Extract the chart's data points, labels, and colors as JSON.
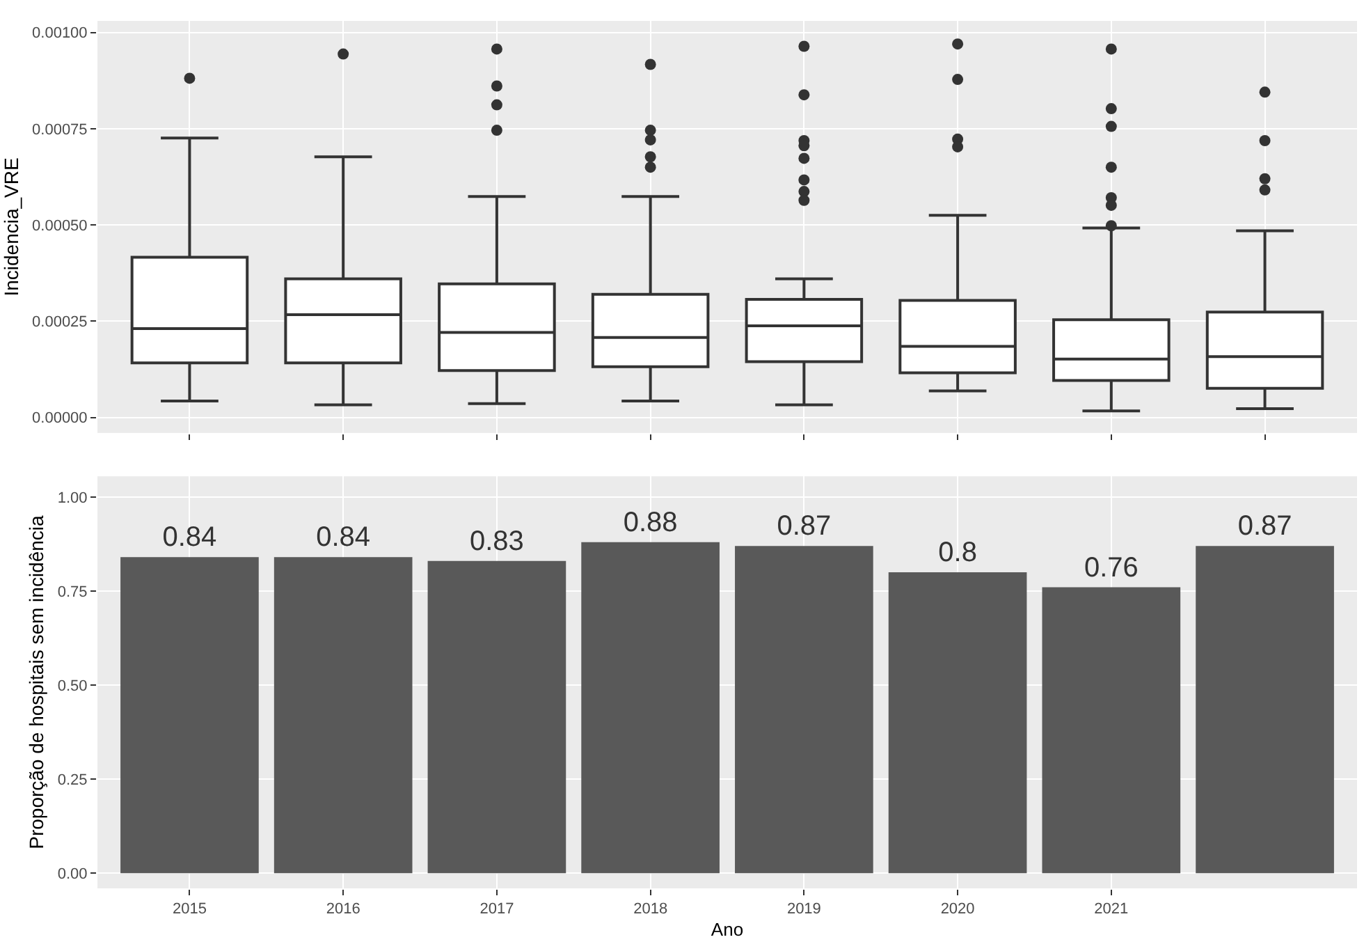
{
  "chart_data": [
    {
      "type": "box",
      "ylabel": "Incidencia_VRE",
      "categories": [
        null,
        null,
        null,
        null,
        null,
        null,
        null,
        null
      ],
      "tick_labels": "y",
      "grid": true,
      "ylim": [
        -4e-05,
        0.00103
      ],
      "yticks": [
        {
          "value": 0,
          "label": "0.00000"
        },
        {
          "value": 0.00025,
          "label": "0.00025"
        },
        {
          "value": 0.0005,
          "label": "0.00050"
        },
        {
          "value": 0.00075,
          "label": "0.00075"
        },
        {
          "value": 0.001,
          "label": "0.00100"
        }
      ],
      "series": [
        {
          "color": "#333333",
          "boxes": [
            {
              "low": 4.3e-05,
              "q1": 0.000142,
              "median": 0.000231,
              "q3": 0.000416,
              "high": 0.000726,
              "outliers": [
                0.000881
              ]
            },
            {
              "low": 3.3e-05,
              "q1": 0.000142,
              "median": 0.000267,
              "q3": 0.00036,
              "high": 0.000677,
              "outliers": [
                0.000944
              ]
            },
            {
              "low": 3.6e-05,
              "q1": 0.000122,
              "median": 0.000221,
              "q3": 0.000347,
              "high": 0.000574,
              "outliers": [
                0.000957,
                0.000861,
                0.000812,
                0.000746
              ]
            },
            {
              "low": 4.3e-05,
              "q1": 0.000132,
              "median": 0.000208,
              "q3": 0.00032,
              "high": 0.000574,
              "outliers": [
                0.000917,
                0.000746,
                0.000721,
                0.000677,
                0.00065
              ]
            },
            {
              "low": 3.3e-05,
              "q1": 0.000145,
              "median": 0.000238,
              "q3": 0.000307,
              "high": 0.00036,
              "outliers": [
                0.000964,
                0.000838,
                0.000719,
                0.000706,
                0.000673,
                0.000617,
                0.000587,
                0.000564
              ]
            },
            {
              "low": 6.9e-05,
              "q1": 0.000116,
              "median": 0.000185,
              "q3": 0.000304,
              "high": 0.000525,
              "outliers": [
                0.00097,
                0.000878,
                0.000723,
                0.000703
              ]
            },
            {
              "low": 1.7e-05,
              "q1": 9.6e-05,
              "median": 0.000152,
              "q3": 0.000254,
              "high": 0.000492,
              "outliers": [
                0.000957,
                0.000802,
                0.000756,
                0.00065,
                0.000571,
                0.000551,
                0.000498
              ]
            },
            {
              "low": 2.3e-05,
              "q1": 7.6e-05,
              "median": 0.000158,
              "q3": 0.000274,
              "high": 0.000485,
              "outliers": [
                0.000845,
                0.000719,
                0.00062,
                0.000591
              ]
            }
          ]
        }
      ]
    },
    {
      "type": "bar",
      "xlabel": "Ano",
      "ylabel": "Proporção de hospitais sem incidência",
      "categories": [
        "2015",
        "2016",
        "2017",
        "2018",
        "2019",
        "2020",
        "2021",
        null
      ],
      "grid": true,
      "data_labels": true,
      "ylim": [
        -0.04,
        1.055
      ],
      "yticks": [
        {
          "value": 0,
          "label": "0.00"
        },
        {
          "value": 0.25,
          "label": "0.25"
        },
        {
          "value": 0.5,
          "label": "0.50"
        },
        {
          "value": 0.75,
          "label": "0.75"
        },
        {
          "value": 1,
          "label": "1.00"
        }
      ],
      "series": [
        {
          "color": "#595959",
          "values": [
            0.84,
            0.84,
            0.83,
            0.88,
            0.87,
            0.8,
            0.76,
            0.87
          ]
        }
      ]
    }
  ]
}
